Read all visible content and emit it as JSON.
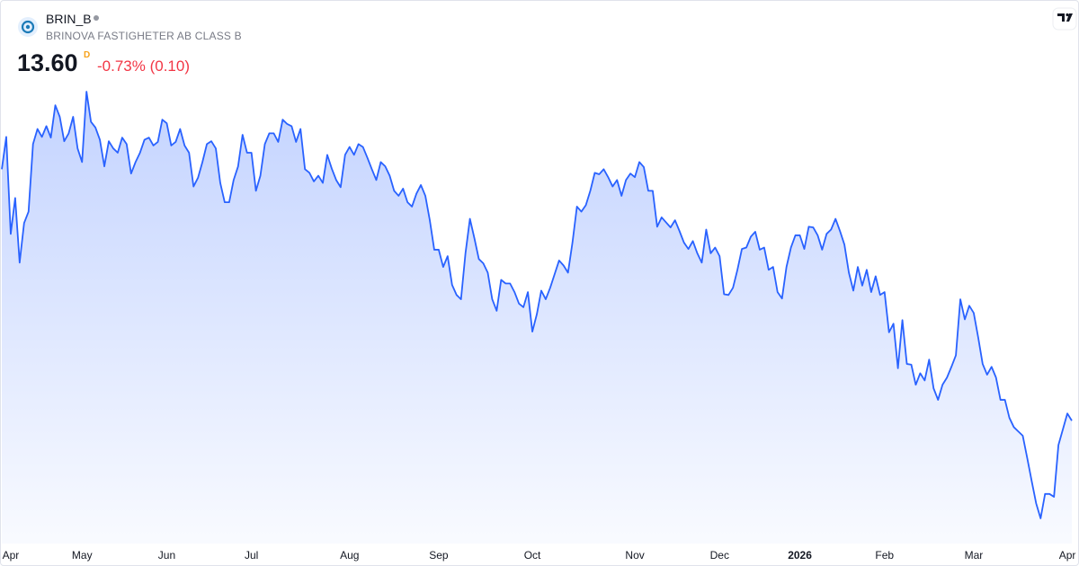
{
  "chart_data": {
    "type": "area",
    "symbol": "BRIN_B",
    "name": "BRINOVA FASTIGHETER AB CLASS B",
    "price": "13.60",
    "price_suffix": "D",
    "change": "-0.73% (0.10)",
    "color": "#2962ff",
    "values": [
      17.1,
      17.55,
      16.2,
      16.7,
      15.8,
      16.35,
      16.51,
      17.45,
      17.66,
      17.55,
      17.7,
      17.54,
      17.99,
      17.83,
      17.49,
      17.6,
      17.83,
      17.39,
      17.2,
      18.18,
      17.76,
      17.68,
      17.51,
      17.14,
      17.49,
      17.39,
      17.33,
      17.54,
      17.45,
      17.04,
      17.2,
      17.33,
      17.51,
      17.54,
      17.43,
      17.48,
      17.79,
      17.74,
      17.43,
      17.48,
      17.66,
      17.43,
      17.33,
      16.86,
      16.98,
      17.2,
      17.45,
      17.49,
      17.39,
      16.91,
      16.64,
      16.64,
      16.95,
      17.14,
      17.58,
      17.33,
      17.33,
      16.8,
      17.01,
      17.45,
      17.6,
      17.6,
      17.48,
      17.79,
      17.73,
      17.7,
      17.48,
      17.66,
      17.1,
      17.05,
      16.93,
      17.01,
      16.91,
      17.3,
      17.11,
      16.95,
      16.85,
      17.3,
      17.41,
      17.3,
      17.45,
      17.41,
      17.26,
      17.1,
      16.95,
      17.2,
      17.14,
      17.01,
      16.8,
      16.73,
      16.83,
      16.64,
      16.58,
      16.76,
      16.88,
      16.73,
      16.39,
      15.98,
      15.98,
      15.74,
      15.89,
      15.49,
      15.35,
      15.29,
      15.93,
      16.41,
      16.14,
      15.85,
      15.79,
      15.66,
      15.29,
      15.13,
      15.56,
      15.51,
      15.51,
      15.39,
      15.23,
      15.18,
      15.39,
      14.84,
      15.08,
      15.41,
      15.29,
      15.45,
      15.64,
      15.83,
      15.76,
      15.66,
      16.08,
      16.58,
      16.51,
      16.6,
      16.8,
      17.05,
      17.03,
      17.1,
      16.99,
      16.86,
      16.95,
      16.73,
      16.95,
      17.04,
      16.99,
      17.2,
      17.13,
      16.8,
      16.8,
      16.3,
      16.43,
      16.36,
      16.29,
      16.39,
      16.24,
      16.08,
      15.99,
      16.1,
      15.93,
      15.8,
      16.26,
      15.93,
      16.01,
      15.89,
      15.36,
      15.35,
      15.45,
      15.7,
      15.99,
      16.01,
      16.16,
      16.23,
      15.98,
      16.01,
      15.7,
      15.74,
      15.39,
      15.3,
      15.74,
      16.01,
      16.18,
      16.18,
      15.99,
      16.3,
      16.29,
      16.18,
      15.98,
      16.2,
      16.26,
      16.41,
      16.24,
      16.05,
      15.66,
      15.41,
      15.74,
      15.48,
      15.7,
      15.39,
      15.61,
      15.35,
      15.39,
      14.83,
      14.95,
      14.33,
      15.0,
      14.39,
      14.38,
      14.1,
      14.26,
      14.16,
      14.45,
      14.05,
      13.89,
      14.1,
      14.2,
      14.35,
      14.51,
      15.29,
      15.01,
      15.2,
      15.1,
      14.76,
      14.39,
      14.24,
      14.35,
      14.2,
      13.89,
      13.89,
      13.64,
      13.51,
      13.45,
      13.39,
      13.08,
      12.76,
      12.45,
      12.24,
      12.58,
      12.58,
      12.54,
      13.26,
      13.48,
      13.7,
      13.6
    ],
    "xticks": [
      {
        "value": 2,
        "label": "Apr"
      },
      {
        "value": 18,
        "label": "May"
      },
      {
        "value": 37,
        "label": "Jun"
      },
      {
        "value": 56,
        "label": "Jul"
      },
      {
        "value": 78,
        "label": "Aug"
      },
      {
        "value": 98,
        "label": "Sep"
      },
      {
        "value": 119,
        "label": "Oct"
      },
      {
        "value": 142,
        "label": "Nov"
      },
      {
        "value": 161,
        "label": "Dec"
      },
      {
        "value": 179,
        "label": "2026"
      },
      {
        "value": 198,
        "label": "Feb"
      },
      {
        "value": 218,
        "label": "Mar"
      },
      {
        "value": 239,
        "label": "Apr"
      }
    ]
  }
}
